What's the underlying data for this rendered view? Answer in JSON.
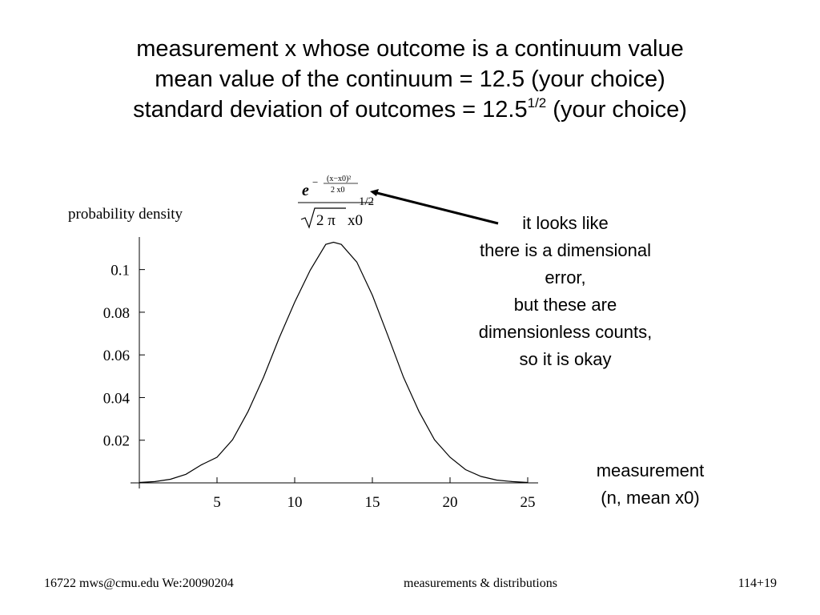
{
  "slide": {
    "title_lines": [
      "measurement x whose outcome is a continuum value",
      "mean value of the continuum = 12.5 (your choice)",
      "standard deviation of outcomes = 12.5"
    ],
    "title_sup": "1/2",
    "title_tail": " (your choice)",
    "annotation_lines": [
      "it looks like",
      "there is a dimensional",
      "error,",
      "but these are",
      "dimensionless counts,",
      "so it is okay"
    ],
    "measurement_lines": [
      "measurement",
      "(n, mean x0)"
    ],
    "formula": {
      "exp_base": "e",
      "exp_numerator": "(x−x0)²",
      "exp_denominator": "2 x0",
      "root": "2 π",
      "root_tail": "x0",
      "power": "1/2"
    },
    "footer": {
      "left": "16722 mws@cmu.edu We:20090204",
      "center": "measurements & distributions",
      "right": "114+19"
    }
  },
  "chart_data": {
    "type": "line",
    "ylabel": "probability density",
    "xlabel": "",
    "xlim": [
      0,
      25.5
    ],
    "ylim": [
      0,
      0.113
    ],
    "xticks": [
      5,
      10,
      15,
      20,
      25
    ],
    "yticks": [
      0.02,
      0.04,
      0.06,
      0.08,
      0.1
    ],
    "ytick_labels": [
      "0.02",
      "0.04",
      "0.06",
      "0.08",
      "0.1"
    ],
    "xtick_labels": [
      "5",
      "10",
      "15",
      "20",
      "25"
    ],
    "series": [
      {
        "x": [
          0,
          1,
          2,
          3,
          4,
          5,
          6,
          7,
          8,
          9,
          10,
          11,
          12,
          12.5,
          13,
          14,
          15,
          16,
          17,
          18,
          19,
          20,
          21,
          22,
          23,
          24,
          25
        ],
        "y": [
          0.0002,
          0.0006,
          0.0017,
          0.004,
          0.0085,
          0.012,
          0.0202,
          0.0335,
          0.0496,
          0.0679,
          0.0847,
          0.0997,
          0.1118,
          0.1128,
          0.1118,
          0.1035,
          0.088,
          0.069,
          0.0496,
          0.0335,
          0.0202,
          0.012,
          0.0062,
          0.003,
          0.0013,
          0.0006,
          0.0002
        ]
      }
    ],
    "grid": false
  }
}
